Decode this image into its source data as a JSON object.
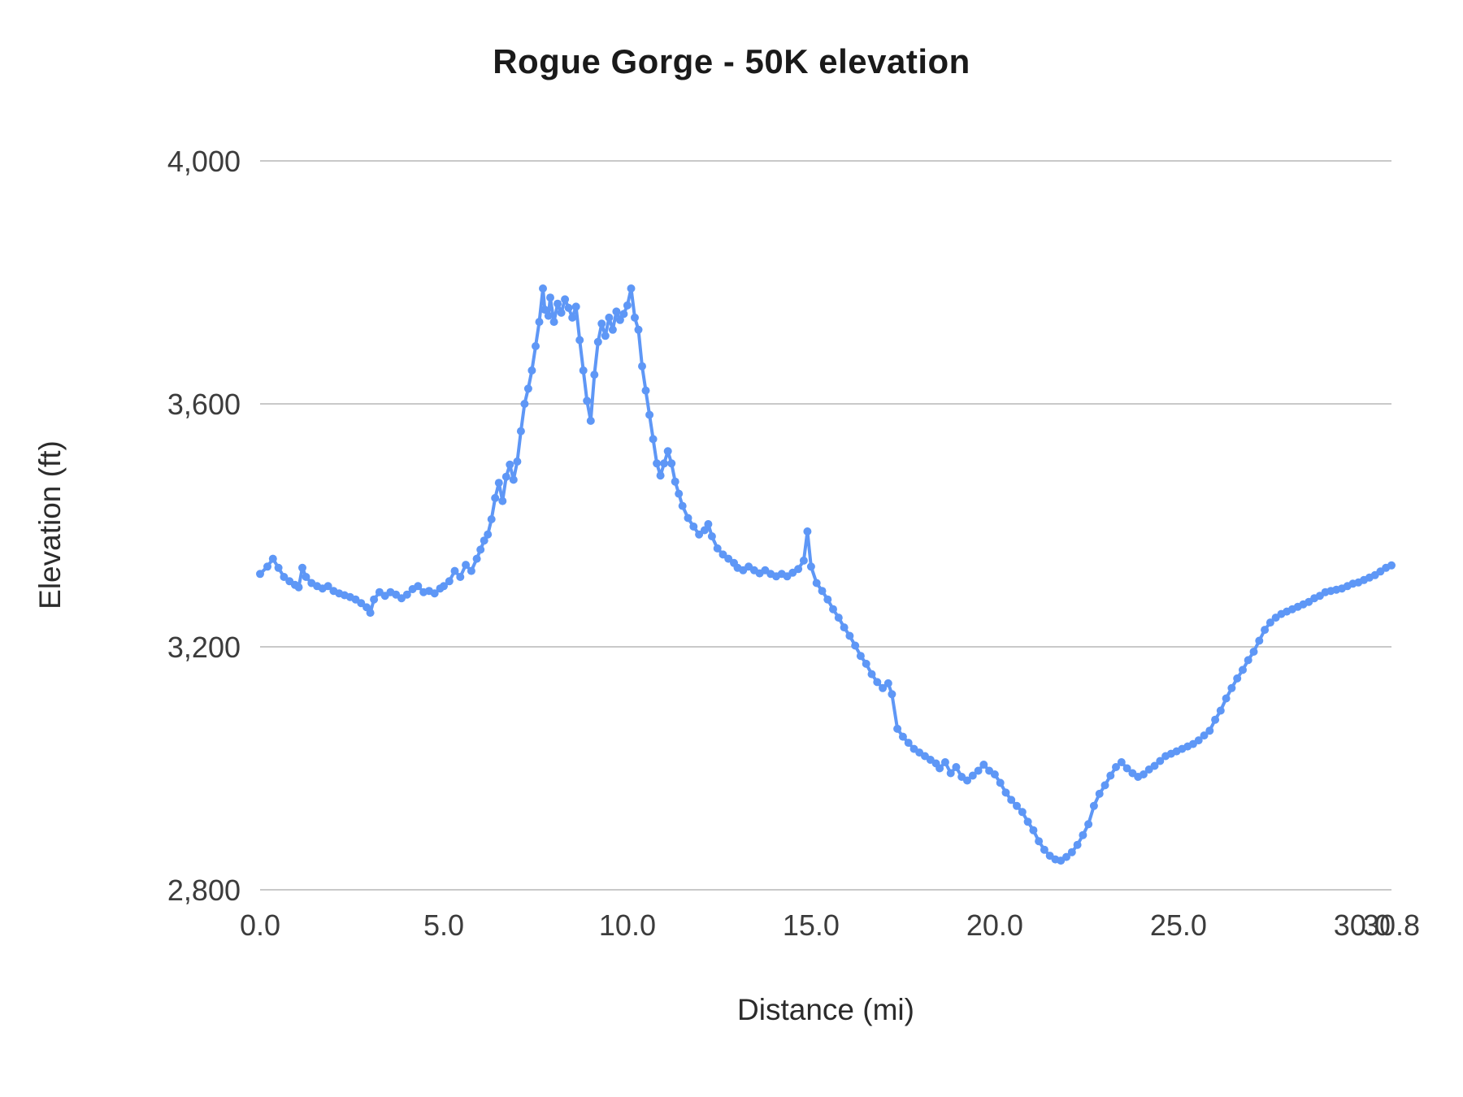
{
  "chart_data": {
    "type": "line",
    "title": "Rogue Gorge - 50K elevation",
    "xlabel": "Distance (mi)",
    "ylabel": "Elevation (ft)",
    "xlim": [
      0,
      30.8
    ],
    "ylim": [
      2800,
      4000
    ],
    "grid": "horizontal",
    "legend": "none",
    "x_ticks": [
      0,
      5,
      10,
      15,
      20,
      25,
      30,
      30.8
    ],
    "x_tick_labels": [
      "0.0",
      "5.0",
      "10.0",
      "15.0",
      "20.0",
      "25.0",
      "30.0",
      "30.8"
    ],
    "y_ticks": [
      2800,
      3200,
      3600,
      4000
    ],
    "y_tick_labels": [
      "2,800",
      "3,200",
      "3,600",
      "4,000"
    ],
    "colors": {
      "series": "#5e97f6",
      "gridline": "#c9c9c9",
      "tick_label": "#3c3c3c",
      "title": "#1a1a1a"
    },
    "series": [
      {
        "name": "Elevation",
        "color": "#5e97f6",
        "points": [
          [
            0.0,
            3320
          ],
          [
            0.2,
            3332
          ],
          [
            0.35,
            3345
          ],
          [
            0.5,
            3330
          ],
          [
            0.65,
            3315
          ],
          [
            0.8,
            3308
          ],
          [
            0.95,
            3302
          ],
          [
            1.05,
            3298
          ],
          [
            1.15,
            3330
          ],
          [
            1.25,
            3315
          ],
          [
            1.4,
            3305
          ],
          [
            1.55,
            3300
          ],
          [
            1.7,
            3296
          ],
          [
            1.85,
            3300
          ],
          [
            2.0,
            3292
          ],
          [
            2.15,
            3288
          ],
          [
            2.3,
            3285
          ],
          [
            2.45,
            3282
          ],
          [
            2.6,
            3278
          ],
          [
            2.75,
            3272
          ],
          [
            2.9,
            3265
          ],
          [
            3.0,
            3256
          ],
          [
            3.1,
            3278
          ],
          [
            3.25,
            3290
          ],
          [
            3.4,
            3284
          ],
          [
            3.55,
            3290
          ],
          [
            3.7,
            3286
          ],
          [
            3.85,
            3280
          ],
          [
            4.0,
            3286
          ],
          [
            4.15,
            3295
          ],
          [
            4.3,
            3300
          ],
          [
            4.45,
            3290
          ],
          [
            4.6,
            3292
          ],
          [
            4.75,
            3288
          ],
          [
            4.9,
            3296
          ],
          [
            5.0,
            3300
          ],
          [
            5.15,
            3308
          ],
          [
            5.3,
            3325
          ],
          [
            5.45,
            3315
          ],
          [
            5.6,
            3335
          ],
          [
            5.75,
            3325
          ],
          [
            5.9,
            3345
          ],
          [
            6.0,
            3360
          ],
          [
            6.1,
            3375
          ],
          [
            6.2,
            3385
          ],
          [
            6.3,
            3410
          ],
          [
            6.4,
            3445
          ],
          [
            6.5,
            3470
          ],
          [
            6.6,
            3440
          ],
          [
            6.7,
            3480
          ],
          [
            6.8,
            3500
          ],
          [
            6.9,
            3475
          ],
          [
            7.0,
            3505
          ],
          [
            7.1,
            3555
          ],
          [
            7.2,
            3600
          ],
          [
            7.3,
            3625
          ],
          [
            7.4,
            3655
          ],
          [
            7.5,
            3695
          ],
          [
            7.6,
            3735
          ],
          [
            7.7,
            3790
          ],
          [
            7.75,
            3755
          ],
          [
            7.85,
            3745
          ],
          [
            7.9,
            3775
          ],
          [
            8.0,
            3735
          ],
          [
            8.1,
            3765
          ],
          [
            8.2,
            3750
          ],
          [
            8.3,
            3772
          ],
          [
            8.4,
            3758
          ],
          [
            8.5,
            3742
          ],
          [
            8.6,
            3760
          ],
          [
            8.7,
            3705
          ],
          [
            8.8,
            3655
          ],
          [
            8.9,
            3605
          ],
          [
            9.0,
            3572
          ],
          [
            9.1,
            3648
          ],
          [
            9.2,
            3702
          ],
          [
            9.3,
            3732
          ],
          [
            9.4,
            3712
          ],
          [
            9.5,
            3742
          ],
          [
            9.6,
            3722
          ],
          [
            9.7,
            3752
          ],
          [
            9.8,
            3738
          ],
          [
            9.9,
            3748
          ],
          [
            10.0,
            3762
          ],
          [
            10.1,
            3790
          ],
          [
            10.2,
            3742
          ],
          [
            10.3,
            3722
          ],
          [
            10.4,
            3662
          ],
          [
            10.5,
            3622
          ],
          [
            10.6,
            3582
          ],
          [
            10.7,
            3542
          ],
          [
            10.8,
            3502
          ],
          [
            10.9,
            3482
          ],
          [
            11.0,
            3502
          ],
          [
            11.1,
            3522
          ],
          [
            11.2,
            3502
          ],
          [
            11.3,
            3472
          ],
          [
            11.4,
            3452
          ],
          [
            11.5,
            3432
          ],
          [
            11.65,
            3412
          ],
          [
            11.8,
            3398
          ],
          [
            11.95,
            3385
          ],
          [
            12.1,
            3392
          ],
          [
            12.2,
            3402
          ],
          [
            12.3,
            3382
          ],
          [
            12.45,
            3362
          ],
          [
            12.6,
            3352
          ],
          [
            12.75,
            3345
          ],
          [
            12.9,
            3338
          ],
          [
            13.0,
            3330
          ],
          [
            13.15,
            3326
          ],
          [
            13.3,
            3332
          ],
          [
            13.45,
            3326
          ],
          [
            13.6,
            3321
          ],
          [
            13.75,
            3326
          ],
          [
            13.9,
            3320
          ],
          [
            14.05,
            3316
          ],
          [
            14.2,
            3320
          ],
          [
            14.35,
            3316
          ],
          [
            14.5,
            3322
          ],
          [
            14.65,
            3328
          ],
          [
            14.8,
            3342
          ],
          [
            14.9,
            3390
          ],
          [
            15.0,
            3332
          ],
          [
            15.15,
            3305
          ],
          [
            15.3,
            3292
          ],
          [
            15.45,
            3278
          ],
          [
            15.6,
            3262
          ],
          [
            15.75,
            3248
          ],
          [
            15.9,
            3232
          ],
          [
            16.05,
            3218
          ],
          [
            16.2,
            3202
          ],
          [
            16.35,
            3185
          ],
          [
            16.5,
            3172
          ],
          [
            16.65,
            3155
          ],
          [
            16.8,
            3142
          ],
          [
            16.95,
            3132
          ],
          [
            17.1,
            3140
          ],
          [
            17.2,
            3122
          ],
          [
            17.35,
            3065
          ],
          [
            17.5,
            3052
          ],
          [
            17.65,
            3042
          ],
          [
            17.8,
            3032
          ],
          [
            17.95,
            3026
          ],
          [
            18.1,
            3020
          ],
          [
            18.25,
            3014
          ],
          [
            18.4,
            3008
          ],
          [
            18.5,
            3000
          ],
          [
            18.65,
            3010
          ],
          [
            18.8,
            2992
          ],
          [
            18.95,
            3002
          ],
          [
            19.1,
            2986
          ],
          [
            19.25,
            2980
          ],
          [
            19.4,
            2988
          ],
          [
            19.55,
            2996
          ],
          [
            19.7,
            3006
          ],
          [
            19.85,
            2996
          ],
          [
            20.0,
            2990
          ],
          [
            20.15,
            2976
          ],
          [
            20.3,
            2960
          ],
          [
            20.45,
            2948
          ],
          [
            20.6,
            2938
          ],
          [
            20.75,
            2928
          ],
          [
            20.9,
            2912
          ],
          [
            21.05,
            2898
          ],
          [
            21.2,
            2880
          ],
          [
            21.35,
            2866
          ],
          [
            21.5,
            2856
          ],
          [
            21.65,
            2850
          ],
          [
            21.8,
            2848
          ],
          [
            21.95,
            2854
          ],
          [
            22.1,
            2862
          ],
          [
            22.25,
            2874
          ],
          [
            22.4,
            2890
          ],
          [
            22.55,
            2908
          ],
          [
            22.7,
            2938
          ],
          [
            22.85,
            2958
          ],
          [
            23.0,
            2972
          ],
          [
            23.15,
            2988
          ],
          [
            23.3,
            3002
          ],
          [
            23.45,
            3010
          ],
          [
            23.6,
            3000
          ],
          [
            23.75,
            2992
          ],
          [
            23.9,
            2986
          ],
          [
            24.05,
            2990
          ],
          [
            24.2,
            2998
          ],
          [
            24.35,
            3004
          ],
          [
            24.5,
            3012
          ],
          [
            24.65,
            3020
          ],
          [
            24.8,
            3024
          ],
          [
            24.95,
            3028
          ],
          [
            25.1,
            3032
          ],
          [
            25.25,
            3036
          ],
          [
            25.4,
            3040
          ],
          [
            25.55,
            3046
          ],
          [
            25.7,
            3054
          ],
          [
            25.85,
            3062
          ],
          [
            26.0,
            3080
          ],
          [
            26.15,
            3095
          ],
          [
            26.3,
            3115
          ],
          [
            26.45,
            3132
          ],
          [
            26.6,
            3148
          ],
          [
            26.75,
            3162
          ],
          [
            26.9,
            3178
          ],
          [
            27.05,
            3192
          ],
          [
            27.2,
            3210
          ],
          [
            27.35,
            3228
          ],
          [
            27.5,
            3240
          ],
          [
            27.65,
            3248
          ],
          [
            27.8,
            3254
          ],
          [
            27.95,
            3258
          ],
          [
            28.1,
            3262
          ],
          [
            28.25,
            3266
          ],
          [
            28.4,
            3270
          ],
          [
            28.55,
            3274
          ],
          [
            28.7,
            3280
          ],
          [
            28.85,
            3284
          ],
          [
            29.0,
            3290
          ],
          [
            29.15,
            3292
          ],
          [
            29.3,
            3294
          ],
          [
            29.45,
            3296
          ],
          [
            29.6,
            3300
          ],
          [
            29.75,
            3304
          ],
          [
            29.9,
            3306
          ],
          [
            30.05,
            3310
          ],
          [
            30.2,
            3314
          ],
          [
            30.35,
            3318
          ],
          [
            30.5,
            3324
          ],
          [
            30.65,
            3330
          ],
          [
            30.8,
            3334
          ]
        ]
      }
    ]
  }
}
